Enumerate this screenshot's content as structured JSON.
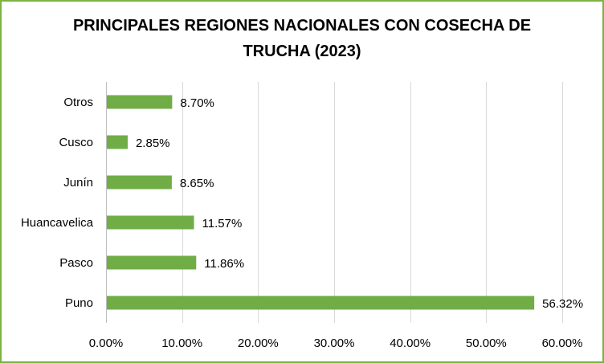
{
  "chart_data": {
    "type": "bar",
    "orientation": "horizontal",
    "title_line1": "PRINCIPALES REGIONES NACIONALES CON COSECHA DE",
    "title_line2": "TRUCHA (2023)",
    "categories": [
      "Otros",
      "Cusco",
      "Junín",
      "Huancavelica",
      "Pasco",
      "Puno"
    ],
    "values": [
      8.7,
      2.85,
      8.65,
      11.57,
      11.86,
      56.32
    ],
    "value_labels": [
      "8.70%",
      "2.85%",
      "8.65%",
      "11.57%",
      "11.86%",
      "56.32%"
    ],
    "x_ticks": [
      0,
      10,
      20,
      30,
      40,
      50,
      60
    ],
    "x_tick_labels": [
      "0.00%",
      "10.00%",
      "20.00%",
      "30.00%",
      "40.00%",
      "50.00%",
      "60.00%"
    ],
    "xlim": [
      0,
      60
    ],
    "grid": true,
    "bar_color": "#70ad47",
    "border_color": "#7cb342"
  }
}
